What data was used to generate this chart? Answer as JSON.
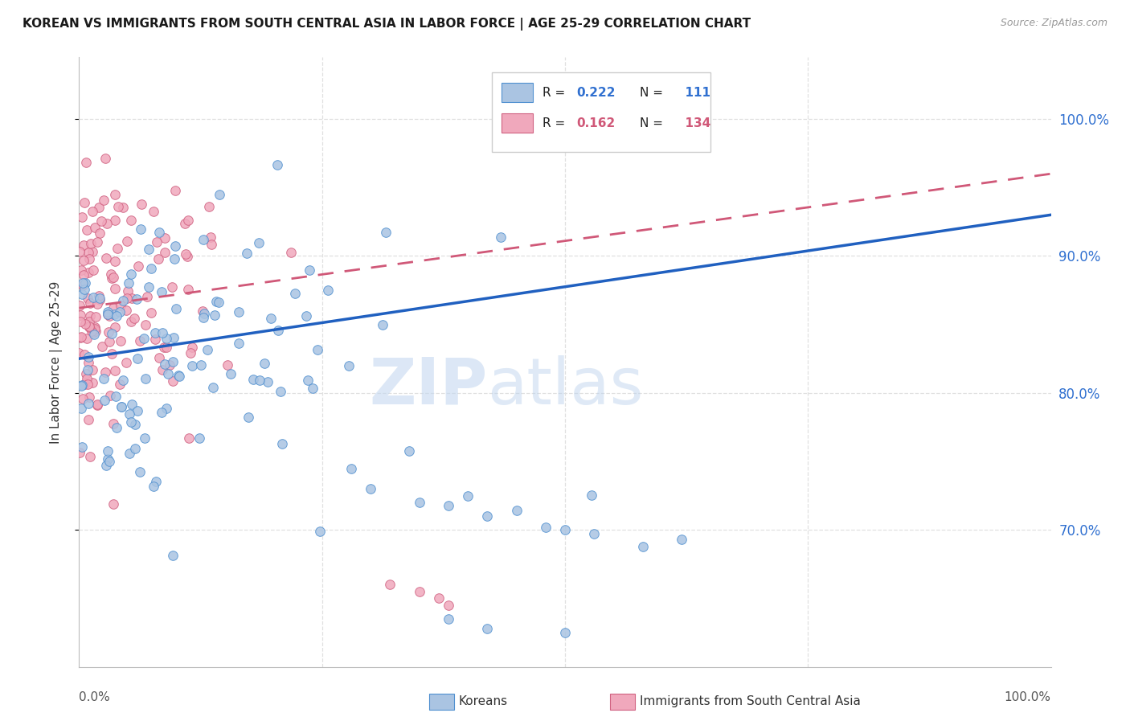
{
  "title": "KOREAN VS IMMIGRANTS FROM SOUTH CENTRAL ASIA IN LABOR FORCE | AGE 25-29 CORRELATION CHART",
  "source": "Source: ZipAtlas.com",
  "ylabel": "In Labor Force | Age 25-29",
  "ytick_labels": [
    "70.0%",
    "80.0%",
    "90.0%",
    "100.0%"
  ],
  "ytick_values": [
    0.7,
    0.8,
    0.9,
    1.0
  ],
  "xmin": 0.0,
  "xmax": 1.0,
  "ymin": 0.6,
  "ymax": 1.045,
  "legend_korean": "Koreans",
  "legend_immigrants": "Immigrants from South Central Asia",
  "R_korean": 0.222,
  "N_korean": 111,
  "R_immigrants": 0.162,
  "N_immigrants": 134,
  "korean_color": "#aac4e2",
  "korean_edge_color": "#5090d0",
  "korean_line_color": "#2060c0",
  "immigrant_color": "#f0a8bc",
  "immigrant_edge_color": "#d06080",
  "immigrant_line_color": "#d05878",
  "background_color": "#ffffff",
  "grid_color": "#e0e0e0",
  "korean_line_y0": 0.825,
  "korean_line_y1": 0.93,
  "immigrant_line_y0": 0.862,
  "immigrant_line_y1": 0.96
}
